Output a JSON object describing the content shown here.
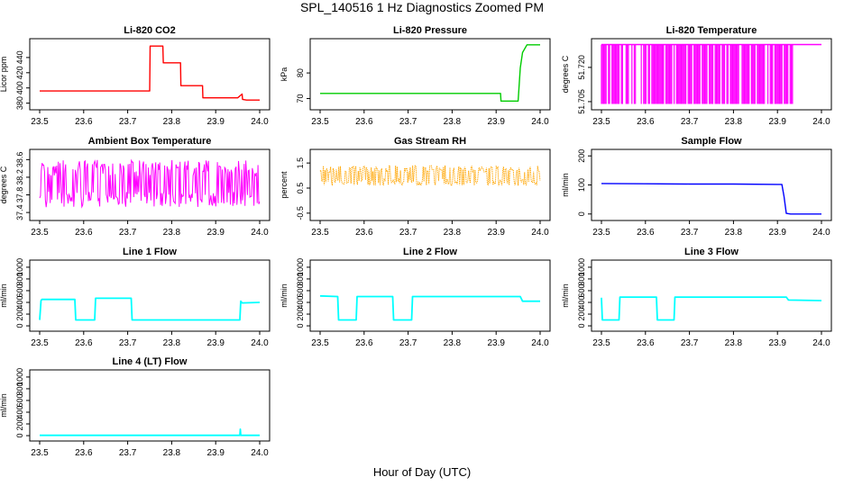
{
  "figure": {
    "title": "SPL_140516  1 Hz Diagnostics Zoomed PM",
    "xlabel": "Hour of Day (UTC)"
  },
  "chart_data": [
    {
      "type": "line",
      "title": "Li-820 CO2",
      "ylabel": "Licor ppm",
      "color": "#ff0000",
      "xlim": [
        23.5,
        24.0
      ],
      "ylim": [
        376,
        460
      ],
      "yticks": [
        380,
        400,
        420,
        440
      ],
      "ytick_labels": [
        "380",
        "400",
        "420",
        "440"
      ],
      "xticks": [
        23.5,
        23.6,
        23.7,
        23.8,
        23.9,
        24.0
      ],
      "xtick_labels": [
        "23.5",
        "23.6",
        "23.7",
        "23.8",
        "23.9",
        "24.0"
      ],
      "series": [
        {
          "x": [
            23.5,
            23.6,
            23.7,
            23.75,
            23.751,
            23.76,
            23.77,
            23.78,
            23.781,
            23.81,
            23.82,
            23.821,
            23.84,
            23.86,
            23.87,
            23.871,
            23.9,
            23.93,
            23.95,
            23.96,
            23.961,
            23.97,
            24.0
          ],
          "y": [
            396,
            396,
            396,
            396,
            455,
            455,
            455,
            455,
            433,
            433,
            433,
            403,
            403,
            403,
            403,
            387,
            387,
            387,
            387,
            392,
            385,
            384,
            384
          ]
        }
      ]
    },
    {
      "type": "line",
      "title": "Li-820 Pressure",
      "ylabel": "kPa",
      "color": "#00cc00",
      "xlim": [
        23.5,
        24.0
      ],
      "ylim": [
        67,
        92
      ],
      "yticks": [
        70,
        80
      ],
      "ytick_labels": [
        "70",
        "80"
      ],
      "xticks": [
        23.5,
        23.6,
        23.7,
        23.8,
        23.9,
        24.0
      ],
      "xtick_labels": [
        "23.5",
        "23.6",
        "23.7",
        "23.8",
        "23.9",
        "24.0"
      ],
      "series": [
        {
          "x": [
            23.5,
            23.6,
            23.7,
            23.8,
            23.9,
            23.91,
            23.911,
            23.95,
            23.955,
            23.96,
            23.97,
            23.98,
            24.0
          ],
          "y": [
            72,
            72,
            72,
            72,
            72,
            72,
            69,
            69,
            82,
            88,
            91,
            91,
            91
          ]
        }
      ]
    },
    {
      "type": "line",
      "title": "Li-820 Temperature",
      "ylabel": "degrees C",
      "color": "#ff00ff",
      "xlim": [
        23.5,
        24.0
      ],
      "ylim": [
        51.703,
        51.731
      ],
      "yticks": [
        51.705,
        51.72
      ],
      "ytick_labels": [
        "51.705",
        "51.720"
      ],
      "xticks": [
        23.5,
        23.6,
        23.7,
        23.8,
        23.9,
        24.0
      ],
      "xtick_labels": [
        "23.5",
        "23.6",
        "23.7",
        "23.8",
        "23.9",
        "24.0"
      ],
      "series": [
        {
          "x": [
            23.5,
            23.935,
            23.935,
            24.0
          ],
          "y": [
            51.73,
            51.73,
            51.73,
            51.73
          ],
          "band_x": [
            23.5,
            23.935
          ],
          "band_y": [
            51.704,
            51.73
          ]
        }
      ]
    },
    {
      "type": "line",
      "title": "Ambient Box Temperature",
      "ylabel": "degrees C",
      "color": "#ff00ff",
      "xlim": [
        23.5,
        24.0
      ],
      "ylim": [
        37.3,
        38.75
      ],
      "yticks": [
        37.4,
        37.8,
        38.2,
        38.6
      ],
      "ytick_labels": [
        "37.4",
        "37.8",
        "38.2",
        "38.6"
      ],
      "xticks": [
        23.5,
        23.6,
        23.7,
        23.8,
        23.9,
        24.0
      ],
      "xtick_labels": [
        "23.5",
        "23.6",
        "23.7",
        "23.8",
        "23.9",
        "24.0"
      ],
      "series": [
        {
          "x": [
            23.5,
            24.0
          ],
          "y": [
            38.0,
            38.0
          ],
          "band_x": [
            23.5,
            24.0
          ],
          "band_y": [
            37.45,
            38.65
          ]
        }
      ]
    },
    {
      "type": "line",
      "title": "Gas Stream RH",
      "ylabel": "percent",
      "color": "#ffa500",
      "xlim": [
        23.5,
        24.0
      ],
      "ylim": [
        -0.65,
        1.9
      ],
      "yticks": [
        -0.5,
        0.5,
        1.5
      ],
      "ytick_labels": [
        "-0.5",
        "0.5",
        "1.5"
      ],
      "xticks": [
        23.5,
        23.6,
        23.7,
        23.8,
        23.9,
        24.0
      ],
      "xtick_labels": [
        "23.5",
        "23.6",
        "23.7",
        "23.8",
        "23.9",
        "24.0"
      ],
      "series": [
        {
          "x": [
            23.5,
            24.0
          ],
          "y": [
            1.0,
            1.0
          ],
          "band_x": [
            23.5,
            24.0
          ],
          "band_y": [
            0.55,
            1.45
          ]
        }
      ]
    },
    {
      "type": "line",
      "title": "Sample Flow",
      "ylabel": "ml/min",
      "color": "#0000ff",
      "xlim": [
        23.5,
        24.0
      ],
      "ylim": [
        -10,
        210
      ],
      "yticks": [
        0,
        100,
        200
      ],
      "ytick_labels": [
        "0",
        "100",
        "200"
      ],
      "xticks": [
        23.5,
        23.6,
        23.7,
        23.8,
        23.9,
        24.0
      ],
      "xtick_labels": [
        "23.5",
        "23.6",
        "23.7",
        "23.8",
        "23.9",
        "24.0"
      ],
      "series": [
        {
          "x": [
            23.5,
            23.6,
            23.7,
            23.8,
            23.9,
            23.91,
            23.915,
            23.92,
            23.93,
            24.0
          ],
          "y": [
            105,
            104,
            103,
            103,
            102,
            102,
            60,
            2,
            0,
            0
          ]
        }
      ]
    },
    {
      "type": "line",
      "title": "Line 1 Flow",
      "ylabel": "ml/min",
      "color": "#00ffff",
      "xlim": [
        23.5,
        24.0
      ],
      "ylim": [
        -30,
        1060
      ],
      "yticks": [
        0,
        200,
        400,
        600,
        800,
        1000
      ],
      "ytick_labels": [
        "0",
        "200",
        "400",
        "600",
        "800",
        "1000"
      ],
      "xticks": [
        23.5,
        23.6,
        23.7,
        23.8,
        23.9,
        24.0
      ],
      "xtick_labels": [
        "23.5",
        "23.6",
        "23.7",
        "23.8",
        "23.9",
        "24.0"
      ],
      "series": [
        {
          "x": [
            23.5,
            23.503,
            23.505,
            23.58,
            23.582,
            23.625,
            23.627,
            23.708,
            23.71,
            23.955,
            23.957,
            23.96,
            24.0
          ],
          "y": [
            100,
            430,
            450,
            450,
            100,
            100,
            470,
            470,
            100,
            100,
            420,
            390,
            400
          ]
        }
      ]
    },
    {
      "type": "line",
      "title": "Line 2 Flow",
      "ylabel": "ml/min",
      "color": "#00ffff",
      "xlim": [
        23.5,
        24.0
      ],
      "ylim": [
        -30,
        1060
      ],
      "yticks": [
        0,
        200,
        400,
        600,
        800,
        1000
      ],
      "ytick_labels": [
        "0",
        "200",
        "400",
        "600",
        "800",
        "1000"
      ],
      "xticks": [
        23.5,
        23.6,
        23.7,
        23.8,
        23.9,
        24.0
      ],
      "xtick_labels": [
        "23.5",
        "23.6",
        "23.7",
        "23.8",
        "23.9",
        "24.0"
      ],
      "series": [
        {
          "x": [
            23.5,
            23.54,
            23.542,
            23.582,
            23.584,
            23.665,
            23.667,
            23.708,
            23.71,
            23.8,
            23.9,
            23.955,
            23.96,
            24.0
          ],
          "y": [
            510,
            500,
            100,
            100,
            500,
            500,
            100,
            100,
            500,
            500,
            500,
            500,
            420,
            420
          ]
        }
      ]
    },
    {
      "type": "line",
      "title": "Line 3 Flow",
      "ylabel": "ml/min",
      "color": "#00ffff",
      "xlim": [
        23.5,
        24.0
      ],
      "ylim": [
        -30,
        1060
      ],
      "yticks": [
        0,
        200,
        400,
        600,
        800,
        1000
      ],
      "ytick_labels": [
        "0",
        "200",
        "400",
        "600",
        "800",
        "1000"
      ],
      "xticks": [
        23.5,
        23.6,
        23.7,
        23.8,
        23.9,
        24.0
      ],
      "xtick_labels": [
        "23.5",
        "23.6",
        "23.7",
        "23.8",
        "23.9",
        "24.0"
      ],
      "series": [
        {
          "x": [
            23.5,
            23.502,
            23.505,
            23.54,
            23.542,
            23.625,
            23.627,
            23.665,
            23.667,
            23.8,
            23.92,
            23.925,
            24.0
          ],
          "y": [
            480,
            100,
            100,
            100,
            490,
            490,
            100,
            100,
            490,
            490,
            490,
            440,
            430
          ]
        }
      ]
    },
    {
      "type": "line",
      "title": "Line 4 (LT) Flow",
      "ylabel": "ml/min",
      "color": "#00ffff",
      "xlim": [
        23.5,
        24.0
      ],
      "ylim": [
        -30,
        1060
      ],
      "yticks": [
        0,
        200,
        400,
        600,
        800,
        1000
      ],
      "ytick_labels": [
        "0",
        "200",
        "400",
        "600",
        "800",
        "1000"
      ],
      "xticks": [
        23.5,
        23.6,
        23.7,
        23.8,
        23.9,
        24.0
      ],
      "xtick_labels": [
        "23.5",
        "23.6",
        "23.7",
        "23.8",
        "23.9",
        "24.0"
      ],
      "series": [
        {
          "x": [
            23.5,
            23.955,
            23.956,
            23.957,
            23.958,
            24.0
          ],
          "y": [
            5,
            5,
            110,
            5,
            5,
            5
          ]
        }
      ]
    }
  ]
}
